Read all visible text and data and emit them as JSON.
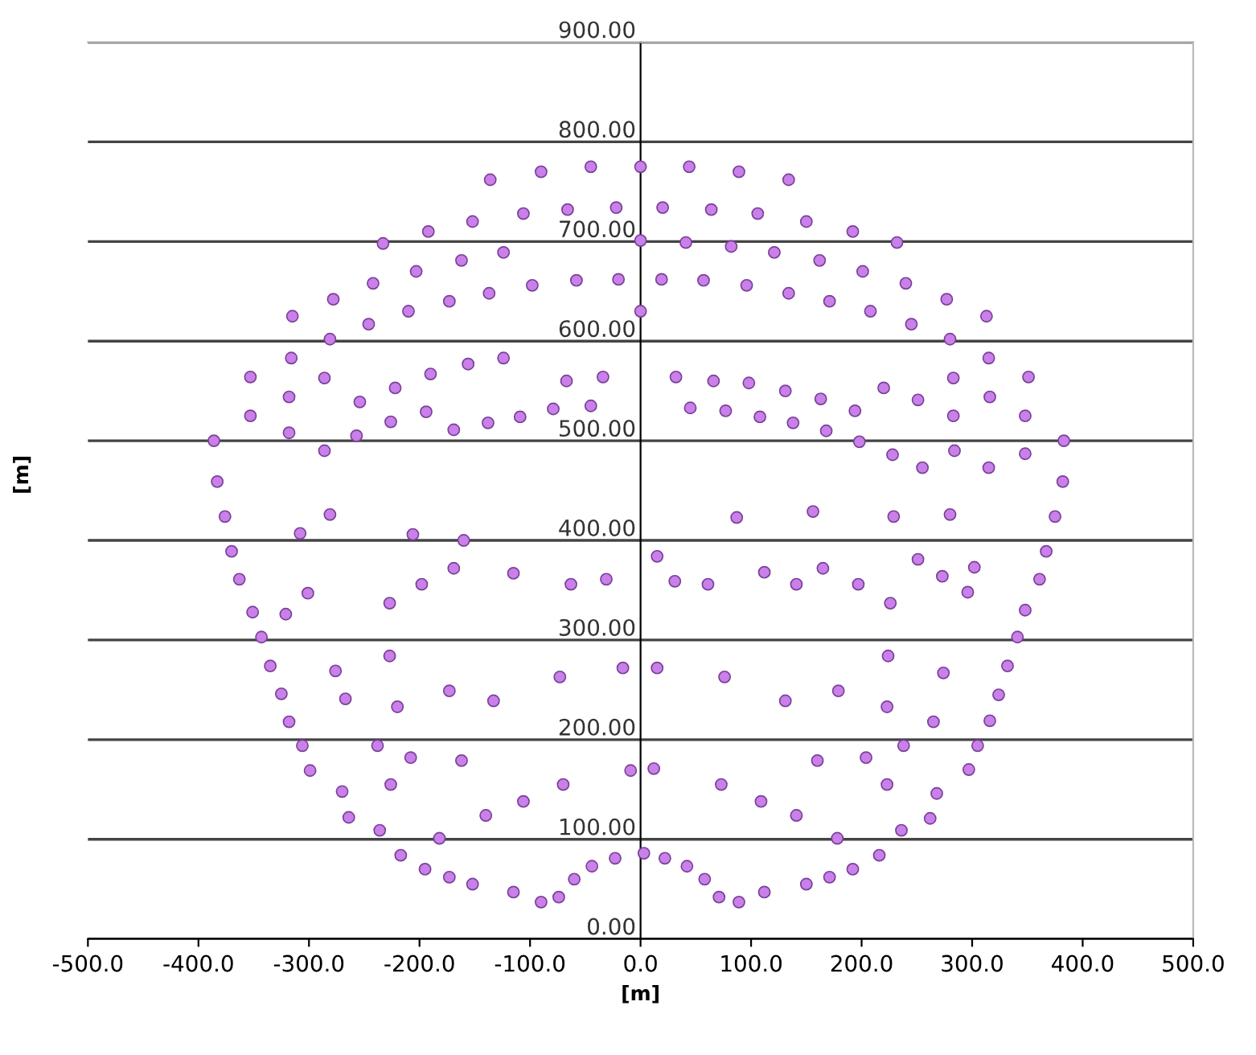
{
  "chart_data": {
    "type": "scatter",
    "xlabel": "[m]",
    "ylabel": "[m]",
    "xlim": [
      -500,
      500
    ],
    "ylim": [
      0,
      900
    ],
    "xticks": [
      {
        "value": -500,
        "label": "-500.0"
      },
      {
        "value": -400,
        "label": "-400.0"
      },
      {
        "value": -300,
        "label": "-300.0"
      },
      {
        "value": -200,
        "label": "-200.0"
      },
      {
        "value": -100,
        "label": "-100.0"
      },
      {
        "value": 0,
        "label": "0.0"
      },
      {
        "value": 100,
        "label": "100.0"
      },
      {
        "value": 200,
        "label": "200.0"
      },
      {
        "value": 300,
        "label": "300.0"
      },
      {
        "value": 400,
        "label": "400.0"
      },
      {
        "value": 500,
        "label": "500.0"
      }
    ],
    "yticks": [
      {
        "value": 0,
        "label": "0.00"
      },
      {
        "value": 100,
        "label": "100.00"
      },
      {
        "value": 200,
        "label": "200.00"
      },
      {
        "value": 300,
        "label": "300.00"
      },
      {
        "value": 400,
        "label": "400.00"
      },
      {
        "value": 500,
        "label": "500.00"
      },
      {
        "value": 600,
        "label": "600.00"
      },
      {
        "value": 700,
        "label": "700.00"
      },
      {
        "value": 800,
        "label": "800.00"
      },
      {
        "value": 900,
        "label": "900.00"
      }
    ],
    "grid": "y",
    "marker": "circle",
    "series": [
      {
        "color": "#c980e8",
        "x": [
          0,
          44,
          89,
          134,
          -45,
          -90,
          -136,
          20,
          64,
          106,
          150,
          192,
          232,
          -22,
          -66,
          -106,
          -152,
          -192,
          -233,
          0,
          41,
          82,
          121,
          162,
          201,
          240,
          277,
          313,
          -124,
          -162,
          -203,
          -242,
          -278,
          -315,
          19,
          57,
          96,
          134,
          171,
          208,
          245,
          280,
          315,
          351,
          383,
          -20,
          -58,
          -98,
          -137,
          -173,
          -210,
          -246,
          -281,
          -316,
          -353,
          -386,
          348,
          316,
          382,
          -353,
          -318,
          -383,
          0,
          32,
          66,
          98,
          131,
          163,
          194,
          220,
          251,
          283,
          283,
          45,
          77,
          108,
          138,
          168,
          198,
          228,
          255,
          284,
          315,
          348,
          -34,
          -67,
          -124,
          -156,
          -190,
          -222,
          -254,
          -286,
          -45,
          -79,
          -109,
          -138,
          -169,
          -194,
          -226,
          -257,
          -286,
          -318,
          375,
          367,
          361,
          348,
          341,
          332,
          324,
          316,
          305,
          297,
          268,
          262,
          236,
          216,
          192,
          171,
          150,
          112,
          89,
          71,
          58,
          42,
          22,
          3,
          -376,
          -370,
          -363,
          -351,
          -343,
          -335,
          -325,
          -318,
          -306,
          -299,
          -270,
          -264,
          -236,
          -217,
          -195,
          -173,
          -152,
          -115,
          -90,
          -74,
          -60,
          -44,
          -23,
          12,
          73,
          109,
          141,
          178,
          160,
          204,
          238,
          223,
          15,
          76,
          131,
          179,
          223,
          265,
          274,
          224,
          197,
          226,
          251,
          302,
          296,
          141,
          112,
          61,
          31,
          15,
          87,
          156,
          229,
          280,
          165,
          273,
          -9,
          -70,
          -106,
          -140,
          -182,
          -162,
          -208,
          -238,
          -226,
          -16,
          -73,
          -133,
          -173,
          -220,
          -267,
          -276,
          -227,
          -198,
          -227,
          -321,
          -301,
          -160,
          -169,
          -115,
          -63,
          -31,
          -308,
          -206,
          -281
        ],
        "values": [
          775,
          775,
          770,
          762,
          775,
          770,
          762,
          734,
          732,
          728,
          720,
          710,
          699,
          734,
          732,
          728,
          720,
          710,
          698,
          701,
          699,
          695,
          689,
          681,
          670,
          658,
          642,
          625,
          689,
          681,
          670,
          658,
          642,
          625,
          662,
          661,
          656,
          648,
          640,
          630,
          617,
          602,
          583,
          564,
          500,
          662,
          661,
          656,
          648,
          640,
          630,
          617,
          602,
          583,
          564,
          500,
          525,
          544,
          459,
          525,
          544,
          459,
          630,
          564,
          560,
          558,
          550,
          542,
          530,
          553,
          541,
          563,
          525,
          533,
          530,
          524,
          518,
          510,
          499,
          486,
          473,
          490,
          473,
          487,
          564,
          560,
          583,
          577,
          567,
          553,
          539,
          563,
          535,
          532,
          524,
          518,
          511,
          529,
          519,
          505,
          490,
          508,
          424,
          389,
          361,
          330,
          303,
          274,
          245,
          219,
          194,
          170,
          146,
          121,
          109,
          84,
          70,
          62,
          55,
          47,
          37,
          42,
          60,
          73,
          81,
          86,
          424,
          389,
          361,
          328,
          303,
          274,
          246,
          218,
          194,
          169,
          148,
          122,
          109,
          84,
          70,
          62,
          55,
          47,
          37,
          42,
          60,
          73,
          81,
          171,
          155,
          138,
          124,
          101,
          179,
          182,
          194,
          155,
          272,
          263,
          239,
          249,
          233,
          218,
          267,
          284,
          356,
          337,
          381,
          373,
          348,
          356,
          368,
          356,
          359,
          384,
          423,
          429,
          424,
          426,
          372,
          364,
          169,
          155,
          138,
          124,
          101,
          179,
          182,
          194,
          155,
          272,
          263,
          239,
          249,
          233,
          241,
          269,
          284,
          356,
          337,
          326,
          347,
          400,
          372,
          367,
          356,
          361,
          407,
          406,
          426
        ]
      }
    ]
  }
}
